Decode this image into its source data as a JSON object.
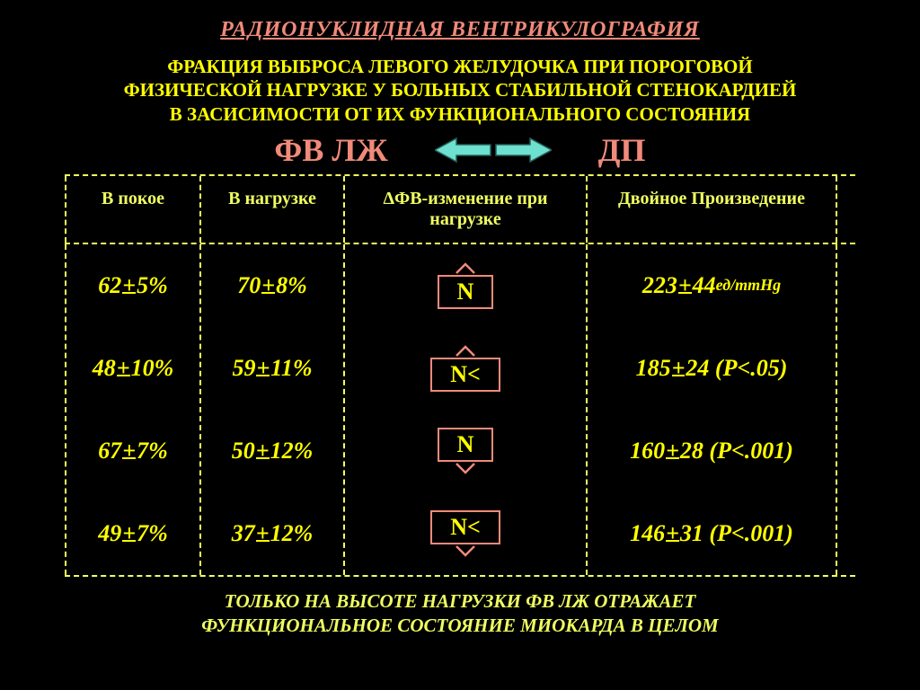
{
  "colors": {
    "background": "#000000",
    "title": "#f08a7a",
    "subtitle": "#ffff00",
    "fv": "#f08a7a",
    "dp": "#f08a7a",
    "header_text": "#f0ff60",
    "data_text": "#ffff00",
    "footer": "#f0ff60",
    "border": "#f0ff60",
    "arrow_fill": "#6de0d0",
    "arrow_stroke": "#275e58",
    "nbox_border": "#f08a7a",
    "nbox_text": "#ffff00"
  },
  "title": "РАДИОНУКЛИДНАЯ  ВЕНТРИКУЛОГРАФИЯ",
  "subtitle_line1": "ФРАКЦИЯ ВЫБРОСА ЛЕВОГО ЖЕЛУДОЧКА ПРИ ПОРОГОВОЙ",
  "subtitle_line2": "ФИЗИЧЕСКОЙ НАГРУЗКЕ У БОЛЬНЫХ СТАБИЛЬНОЙ СТЕНОКАРДИЕЙ",
  "subtitle_line3": "В ЗАСИСИМОСТИ ОТ ИХ ФУНКЦИОНАЛЬНОГО СОСТОЯНИЯ",
  "fv_label": "ФВ   ЛЖ",
  "dp_label": "ДП",
  "columns": {
    "c1": "В покое",
    "c2": "В нагрузке",
    "c3": "ΔФВ-изменение при нагрузке",
    "c4": "Двойное Произведение"
  },
  "rows": [
    {
      "rest": "62",
      "rest_pm": "5%",
      "load": "70",
      "load_pm": "8%",
      "dfv_label": "N",
      "dfv_dir": "up",
      "dp": "223",
      "dp_pm": "44",
      "dp_suffix": " ед/mmHg"
    },
    {
      "rest": "48",
      "rest_pm": "10%",
      "load": "59",
      "load_pm": "11%",
      "dfv_label": "N<",
      "dfv_dir": "up",
      "dp": "185",
      "dp_pm": "24",
      "dp_suffix": " (P<.05)"
    },
    {
      "rest": "67",
      "rest_pm": "7%",
      "load": "50",
      "load_pm": "12%",
      "dfv_label": "N",
      "dfv_dir": "down",
      "dp": "160",
      "dp_pm": "28",
      "dp_suffix": " (P<.001)"
    },
    {
      "rest": "49",
      "rest_pm": "7%",
      "load": "37",
      "load_pm": "12%",
      "dfv_label": "N<",
      "dfv_dir": "down",
      "dp": "146",
      "dp_pm": "31",
      "dp_suffix": " (P<.001)"
    }
  ],
  "footer_line1": "ТОЛЬКО НА ВЫСОТЕ НАГРУЗКИ  ФВ ЛЖ  ОТРАЖАЕТ",
  "footer_line2": "ФУНКЦИОНАЛЬНОЕ СОСТОЯНИЕ МИОКАРДА В ЦЕЛОМ"
}
